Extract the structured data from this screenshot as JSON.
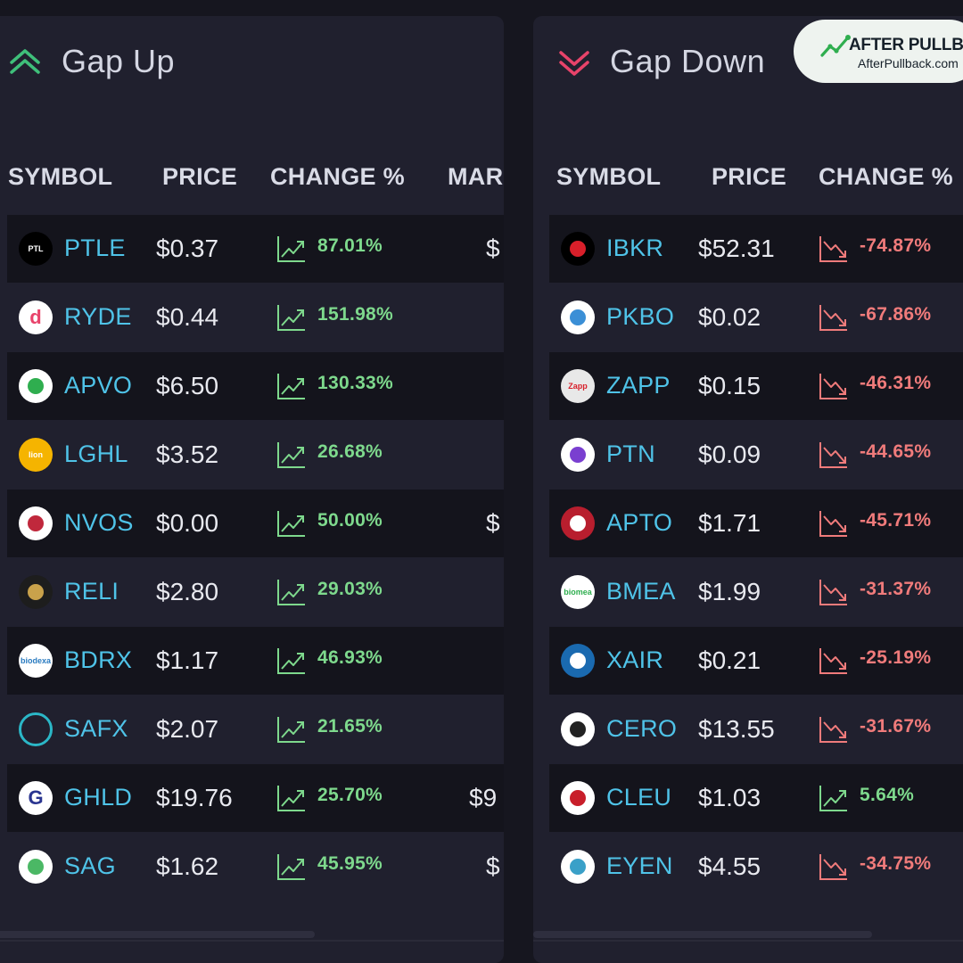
{
  "badge": {
    "title": "AFTER PULLBACK",
    "url": "AfterPullback.com"
  },
  "gap_up": {
    "title": "Gap Up",
    "columns": [
      "SYMBOL",
      "PRICE",
      "CHANGE %",
      "MAR"
    ],
    "rows": [
      {
        "symbol": "PTLE",
        "price": "$0.37",
        "change": "87.01%",
        "trend": "up",
        "market": "$",
        "logo": "PTL"
      },
      {
        "symbol": "RYDE",
        "price": "$0.44",
        "change": "151.98%",
        "trend": "up",
        "market": "",
        "logo": "d"
      },
      {
        "symbol": "APVO",
        "price": "$6.50",
        "change": "130.33%",
        "trend": "up",
        "market": "",
        "logo": ""
      },
      {
        "symbol": "LGHL",
        "price": "$3.52",
        "change": "26.68%",
        "trend": "up",
        "market": "",
        "logo": "lion"
      },
      {
        "symbol": "NVOS",
        "price": "$0.00",
        "change": "50.00%",
        "trend": "up",
        "market": "$",
        "logo": ""
      },
      {
        "symbol": "RELI",
        "price": "$2.80",
        "change": "29.03%",
        "trend": "up",
        "market": "",
        "logo": ""
      },
      {
        "symbol": "BDRX",
        "price": "$1.17",
        "change": "46.93%",
        "trend": "up",
        "market": "",
        "logo": "biodexa"
      },
      {
        "symbol": "SAFX",
        "price": "$2.07",
        "change": "21.65%",
        "trend": "up",
        "market": "",
        "logo": ""
      },
      {
        "symbol": "GHLD",
        "price": "$19.76",
        "change": "25.70%",
        "trend": "up",
        "market": "$9",
        "logo": "G"
      },
      {
        "symbol": "SAG",
        "price": "$1.62",
        "change": "45.95%",
        "trend": "up",
        "market": "$",
        "logo": ""
      }
    ]
  },
  "gap_down": {
    "title": "Gap Down",
    "columns": [
      "SYMBOL",
      "PRICE",
      "CHANGE %"
    ],
    "rows": [
      {
        "symbol": "IBKR",
        "price": "$52.31",
        "change": "-74.87%",
        "trend": "down",
        "logo": ""
      },
      {
        "symbol": "PKBO",
        "price": "$0.02",
        "change": "-67.86%",
        "trend": "down",
        "logo": ""
      },
      {
        "symbol": "ZAPP",
        "price": "$0.15",
        "change": "-46.31%",
        "trend": "down",
        "logo": "Zapp"
      },
      {
        "symbol": "PTN",
        "price": "$0.09",
        "change": "-44.65%",
        "trend": "down",
        "logo": ""
      },
      {
        "symbol": "APTO",
        "price": "$1.71",
        "change": "-45.71%",
        "trend": "down",
        "logo": ""
      },
      {
        "symbol": "BMEA",
        "price": "$1.99",
        "change": "-31.37%",
        "trend": "down",
        "logo": "biomea"
      },
      {
        "symbol": "XAIR",
        "price": "$0.21",
        "change": "-25.19%",
        "trend": "down",
        "logo": ""
      },
      {
        "symbol": "CERO",
        "price": "$13.55",
        "change": "-31.67%",
        "trend": "down",
        "logo": ""
      },
      {
        "symbol": "CLEU",
        "price": "$1.03",
        "change": "5.64%",
        "trend": "up",
        "logo": ""
      },
      {
        "symbol": "EYEN",
        "price": "$4.55",
        "change": "-34.75%",
        "trend": "down",
        "logo": ""
      }
    ]
  },
  "colors": {
    "up": "#7ed98d",
    "down": "#f07b7b",
    "symbol": "#4fc3e8",
    "accent_up": "#3fbf7a",
    "accent_down": "#e8436a"
  }
}
